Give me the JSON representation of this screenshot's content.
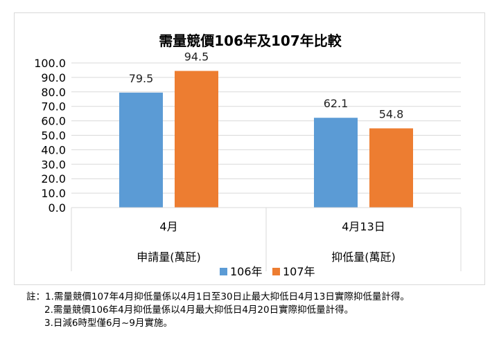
{
  "chart_data": {
    "type": "bar",
    "title": "需量競價106年及107年比較",
    "ylim": [
      0,
      100
    ],
    "yticks": [
      "0.0",
      "10.0",
      "20.0",
      "30.0",
      "40.0",
      "50.0",
      "60.0",
      "70.0",
      "80.0",
      "90.0",
      "100.0"
    ],
    "grid": true,
    "categories": [
      "4月",
      "4月13日"
    ],
    "groups": [
      {
        "label": "申請量(萬瓩)",
        "categories": [
          "4月"
        ]
      },
      {
        "label": "抑低量(萬瓩)",
        "categories": [
          "4月13日"
        ]
      }
    ],
    "series": [
      {
        "name": "106年",
        "color": "#5b9bd5",
        "values": [
          79.5,
          62.1
        ],
        "labels": [
          "79.5",
          "62.1"
        ]
      },
      {
        "name": "107年",
        "color": "#ed7d31",
        "values": [
          94.5,
          54.8
        ],
        "labels": [
          "94.5",
          "54.8"
        ]
      }
    ],
    "legend_position": "bottom"
  },
  "notes": {
    "line1": "註：1.需量競價107年4月抑低量係以4月1日至30日止最大抑低日4月13日實際抑低量計得。",
    "line2": "2.需量競價106年4月抑低量係以4月最大抑低日4月20日實際抑低量計得。",
    "line3": "3.日減6時型僅6月~9月實施。"
  }
}
